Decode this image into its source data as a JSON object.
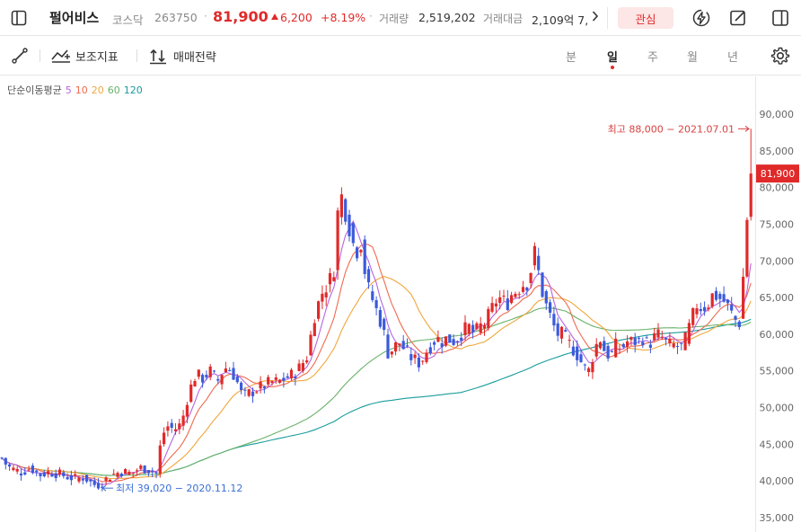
{
  "header": {
    "stock_name": "펄어비스",
    "market": "코스닥",
    "code": "263750",
    "dot": "·",
    "price": "81,900",
    "change": "6,200",
    "change_rate": "+8.19%",
    "volume_label": "거래량",
    "volume_value": "2,519,202",
    "amount_label": "거래대금",
    "amount_value": "2,109억 7,",
    "favorite_label": "관심",
    "icons": [
      "sidebar-toggle-icon",
      "chevron-right-icon",
      "flash-icon",
      "edit-icon",
      "panel-icon"
    ]
  },
  "toolbar": {
    "indicator_label": "보조지표",
    "trade_strategy_label": "매매전략",
    "periods": [
      "분",
      "일",
      "주",
      "월",
      "년"
    ],
    "active_period": "일",
    "icons": [
      "draw-line-icon",
      "indicator-icon",
      "strategy-icon",
      "settings-icon"
    ]
  },
  "legend": {
    "title": "단순이동평균",
    "items": [
      "5",
      "10",
      "20",
      "60",
      "120"
    ]
  },
  "colors": {
    "up": "#e02a2a",
    "down": "#3b5bdb",
    "ma5": "#b565e0",
    "ma10": "#f06a4e",
    "ma20": "#f0a63c",
    "ma60": "#6ab26a",
    "ma120": "#1a9c9c",
    "max_label": "#d94040",
    "min_label": "#3b6fd6"
  },
  "chart_data": {
    "type": "candlestick",
    "y_ticks": [
      "90,000",
      "85,000",
      "80,000",
      "75,000",
      "70,000",
      "65,000",
      "60,000",
      "55,000",
      "50,000",
      "45,000",
      "40,000",
      "35,000"
    ],
    "ylim": [
      34500,
      92500
    ],
    "current_price_label": "81,900",
    "current_price": 81900,
    "max_label": "최고 88,000 − 2021.07.01",
    "min_label": "최저 39,020 − 2020.11.12",
    "ma_legend": [
      "5",
      "10",
      "20",
      "60",
      "120"
    ],
    "close_path": [
      [
        0,
        43500
      ],
      [
        8,
        42000
      ],
      [
        16,
        41500
      ],
      [
        24,
        41200
      ],
      [
        34,
        41800
      ],
      [
        44,
        40800
      ],
      [
        54,
        41200
      ],
      [
        64,
        41000
      ],
      [
        74,
        40600
      ],
      [
        84,
        40300
      ],
      [
        94,
        40500
      ],
      [
        104,
        39500
      ],
      [
        112,
        39500
      ],
      [
        120,
        40500
      ],
      [
        128,
        41000
      ],
      [
        136,
        41300
      ],
      [
        146,
        41000
      ],
      [
        156,
        41800
      ],
      [
        166,
        41500
      ],
      [
        174,
        41000
      ],
      [
        180,
        46000
      ],
      [
        186,
        47500
      ],
      [
        194,
        47000
      ],
      [
        202,
        47800
      ],
      [
        210,
        52000
      ],
      [
        218,
        54500
      ],
      [
        226,
        54000
      ],
      [
        234,
        55000
      ],
      [
        242,
        53500
      ],
      [
        250,
        55500
      ],
      [
        258,
        55000
      ],
      [
        264,
        53500
      ],
      [
        270,
        51500
      ],
      [
        278,
        52000
      ],
      [
        286,
        52500
      ],
      [
        294,
        53000
      ],
      [
        302,
        53500
      ],
      [
        310,
        53500
      ],
      [
        318,
        54000
      ],
      [
        326,
        54500
      ],
      [
        334,
        55500
      ],
      [
        342,
        57000
      ],
      [
        350,
        62500
      ],
      [
        358,
        65500
      ],
      [
        366,
        67000
      ],
      [
        372,
        69000
      ],
      [
        378,
        80000
      ],
      [
        384,
        77000
      ],
      [
        390,
        74000
      ],
      [
        396,
        71000
      ],
      [
        402,
        72500
      ],
      [
        408,
        67000
      ],
      [
        414,
        65000
      ],
      [
        420,
        63000
      ],
      [
        426,
        61000
      ],
      [
        432,
        57500
      ],
      [
        438,
        58000
      ],
      [
        444,
        59000
      ],
      [
        450,
        58000
      ],
      [
        456,
        57000
      ],
      [
        462,
        56500
      ],
      [
        468,
        56000
      ],
      [
        474,
        57500
      ],
      [
        480,
        58500
      ],
      [
        486,
        59500
      ],
      [
        492,
        59000
      ],
      [
        498,
        59500
      ],
      [
        504,
        59000
      ],
      [
        510,
        59500
      ],
      [
        516,
        60500
      ],
      [
        522,
        61000
      ],
      [
        528,
        60000
      ],
      [
        534,
        61000
      ],
      [
        540,
        61500
      ],
      [
        546,
        63000
      ],
      [
        552,
        64500
      ],
      [
        558,
        65000
      ],
      [
        564,
        64000
      ],
      [
        570,
        65500
      ],
      [
        576,
        66000
      ],
      [
        582,
        66800
      ],
      [
        588,
        67000
      ],
      [
        596,
        71500
      ],
      [
        602,
        66500
      ],
      [
        608,
        64000
      ],
      [
        614,
        62000
      ],
      [
        620,
        60000
      ],
      [
        626,
        60000
      ],
      [
        632,
        59000
      ],
      [
        638,
        58000
      ],
      [
        644,
        57000
      ],
      [
        650,
        55500
      ],
      [
        656,
        55000
      ],
      [
        662,
        58000
      ],
      [
        668,
        59500
      ],
      [
        674,
        57500
      ],
      [
        680,
        57000
      ],
      [
        686,
        58500
      ],
      [
        692,
        58000
      ],
      [
        698,
        59000
      ],
      [
        704,
        59000
      ],
      [
        710,
        59000
      ],
      [
        716,
        59500
      ],
      [
        722,
        58500
      ],
      [
        728,
        59500
      ],
      [
        734,
        60000
      ],
      [
        740,
        59000
      ],
      [
        746,
        58500
      ],
      [
        752,
        58500
      ],
      [
        758,
        58000
      ],
      [
        764,
        59500
      ],
      [
        770,
        62000
      ],
      [
        776,
        64000
      ],
      [
        782,
        63500
      ],
      [
        788,
        64000
      ],
      [
        794,
        65500
      ],
      [
        800,
        65000
      ],
      [
        806,
        64500
      ],
      [
        812,
        63500
      ],
      [
        818,
        62000
      ],
      [
        824,
        61500
      ],
      [
        830,
        72000
      ],
      [
        833,
        78000
      ],
      [
        837,
        81900
      ]
    ],
    "ma_offsets": {
      "5": 0,
      "10": 0,
      "20": 0,
      "60": 0,
      "120": 0
    }
  }
}
